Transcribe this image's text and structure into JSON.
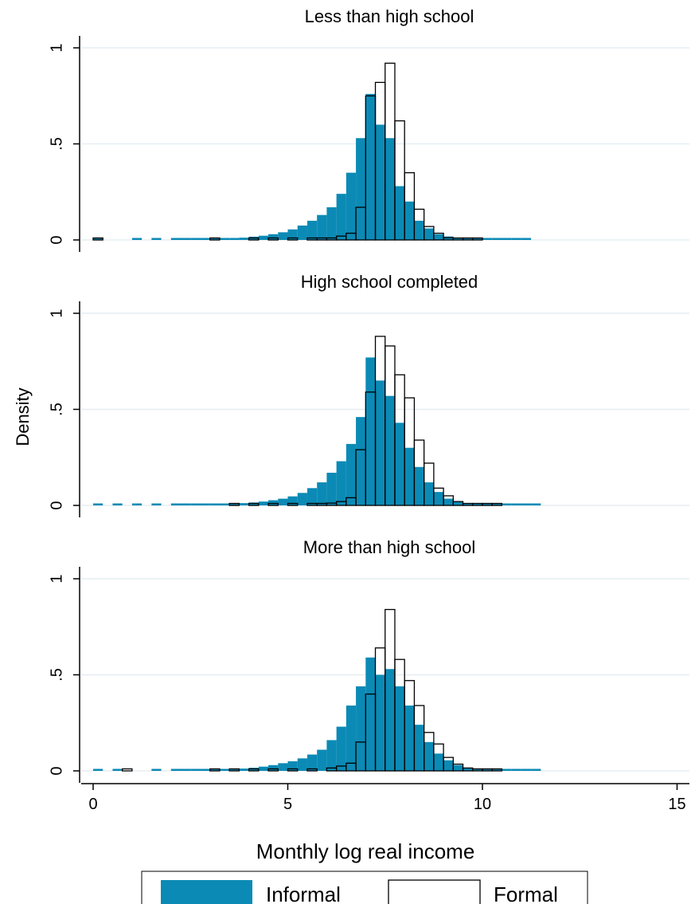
{
  "colors": {
    "informal": "#0b8ab5",
    "formal": "#ffffff",
    "grid": "#e6eef2",
    "axis": "#000000"
  },
  "legend": {
    "informal_label": "Informal",
    "formal_label": "Formal",
    "position": "bottom"
  },
  "chart_data": {
    "type": "bar",
    "subtype": "overlaid-histogram-by-panel",
    "xlabel": "Monthly log real income",
    "ylabel": "Density",
    "xlim": [
      -0.3,
      15.2
    ],
    "ylim": [
      0,
      1.1
    ],
    "xticks": [
      0,
      5,
      10,
      15
    ],
    "yticks": [
      {
        "value": 0,
        "label": "0"
      },
      {
        "value": 0.5,
        "label": ".5"
      },
      {
        "value": 1,
        "label": "1"
      }
    ],
    "grid": true,
    "bin_width": 0.25,
    "panels": [
      {
        "title": "Less than high school",
        "series": [
          {
            "name": "Informal",
            "color": "#0b8ab5",
            "filled": true,
            "x": [
              0.0,
              1.0,
              1.5,
              2.0,
              2.25,
              2.5,
              2.75,
              3.0,
              3.25,
              3.5,
              3.75,
              4.0,
              4.25,
              4.5,
              4.75,
              5.0,
              5.25,
              5.5,
              5.75,
              6.0,
              6.25,
              6.5,
              6.75,
              7.0,
              7.25,
              7.5,
              7.75,
              8.0,
              8.25,
              8.5,
              8.75,
              9.0,
              9.25,
              9.5,
              9.75,
              10.0,
              10.25,
              10.5,
              10.75,
              11.0
            ],
            "y": [
              0.004,
              0.004,
              0.004,
              0.004,
              0.004,
              0.005,
              0.005,
              0.006,
              0.008,
              0.01,
              0.012,
              0.017,
              0.022,
              0.03,
              0.04,
              0.055,
              0.075,
              0.1,
              0.13,
              0.17,
              0.24,
              0.35,
              0.53,
              0.76,
              0.6,
              0.53,
              0.28,
              0.2,
              0.1,
              0.06,
              0.03,
              0.018,
              0.012,
              0.008,
              0.006,
              0.004,
              0.004,
              0.004,
              0.003,
              0.003
            ]
          },
          {
            "name": "Formal",
            "color": "#ffffff",
            "filled": false,
            "x": [
              0.0,
              3.0,
              4.0,
              4.5,
              5.0,
              5.5,
              5.75,
              6.0,
              6.25,
              6.5,
              6.75,
              7.0,
              7.25,
              7.5,
              7.75,
              8.0,
              8.25,
              8.5,
              8.75,
              9.0,
              9.25,
              9.5,
              9.75
            ],
            "y": [
              0.003,
              0.003,
              0.004,
              0.004,
              0.005,
              0.006,
              0.008,
              0.01,
              0.02,
              0.035,
              0.17,
              0.75,
              0.82,
              0.92,
              0.62,
              0.35,
              0.16,
              0.07,
              0.035,
              0.012,
              0.006,
              0.004,
              0.003
            ]
          }
        ]
      },
      {
        "title": "High school completed",
        "series": [
          {
            "name": "Informal",
            "color": "#0b8ab5",
            "filled": true,
            "x": [
              0.0,
              0.5,
              1.0,
              1.5,
              2.0,
              2.25,
              2.5,
              2.75,
              3.0,
              3.25,
              3.5,
              3.75,
              4.0,
              4.25,
              4.5,
              4.75,
              5.0,
              5.25,
              5.5,
              5.75,
              6.0,
              6.25,
              6.5,
              6.75,
              7.0,
              7.25,
              7.5,
              7.75,
              8.0,
              8.25,
              8.5,
              8.75,
              9.0,
              9.25,
              9.5,
              9.75,
              10.0,
              10.25,
              10.5,
              10.75,
              11.0,
              11.25
            ],
            "y": [
              0.004,
              0.004,
              0.004,
              0.004,
              0.004,
              0.004,
              0.005,
              0.005,
              0.006,
              0.007,
              0.009,
              0.012,
              0.015,
              0.02,
              0.027,
              0.035,
              0.047,
              0.065,
              0.09,
              0.12,
              0.17,
              0.23,
              0.32,
              0.46,
              0.77,
              0.65,
              0.57,
              0.43,
              0.3,
              0.2,
              0.12,
              0.07,
              0.035,
              0.02,
              0.012,
              0.008,
              0.006,
              0.005,
              0.004,
              0.004,
              0.004,
              0.004
            ]
          },
          {
            "name": "Formal",
            "color": "#ffffff",
            "filled": false,
            "x": [
              3.5,
              4.0,
              4.5,
              5.0,
              5.5,
              5.75,
              6.0,
              6.25,
              6.5,
              6.75,
              7.0,
              7.25,
              7.5,
              7.75,
              8.0,
              8.25,
              8.5,
              8.75,
              9.0,
              9.25,
              9.5,
              9.75,
              10.0,
              10.25
            ],
            "y": [
              0.004,
              0.004,
              0.005,
              0.006,
              0.008,
              0.01,
              0.012,
              0.02,
              0.04,
              0.29,
              0.59,
              0.88,
              0.83,
              0.68,
              0.56,
              0.34,
              0.22,
              0.09,
              0.05,
              0.02,
              0.01,
              0.006,
              0.005,
              0.004
            ]
          }
        ]
      },
      {
        "title": "More than high school",
        "series": [
          {
            "name": "Informal",
            "color": "#0b8ab5",
            "filled": true,
            "x": [
              0.0,
              0.5,
              1.5,
              2.0,
              2.25,
              2.5,
              2.75,
              3.0,
              3.25,
              3.5,
              3.75,
              4.0,
              4.25,
              4.5,
              4.75,
              5.0,
              5.25,
              5.5,
              5.75,
              6.0,
              6.25,
              6.5,
              6.75,
              7.0,
              7.25,
              7.5,
              7.75,
              8.0,
              8.25,
              8.5,
              8.75,
              9.0,
              9.25,
              9.5,
              9.75,
              10.0,
              10.25,
              10.5,
              10.75,
              11.0,
              11.25
            ],
            "y": [
              0.004,
              0.004,
              0.004,
              0.004,
              0.004,
              0.005,
              0.005,
              0.006,
              0.007,
              0.009,
              0.012,
              0.016,
              0.022,
              0.03,
              0.04,
              0.05,
              0.065,
              0.085,
              0.11,
              0.16,
              0.23,
              0.34,
              0.44,
              0.59,
              0.5,
              0.53,
              0.44,
              0.34,
              0.24,
              0.15,
              0.09,
              0.055,
              0.03,
              0.015,
              0.01,
              0.007,
              0.005,
              0.004,
              0.004,
              0.004,
              0.004
            ]
          },
          {
            "name": "Formal",
            "color": "#ffffff",
            "filled": false,
            "x": [
              0.75,
              3.0,
              3.5,
              4.0,
              4.5,
              5.0,
              5.5,
              6.0,
              6.25,
              6.5,
              6.75,
              7.0,
              7.25,
              7.5,
              7.75,
              8.0,
              8.25,
              8.5,
              8.75,
              9.0,
              9.25,
              9.5,
              9.75,
              10.0,
              10.25
            ],
            "y": [
              0.003,
              0.003,
              0.004,
              0.005,
              0.006,
              0.008,
              0.01,
              0.015,
              0.025,
              0.04,
              0.15,
              0.4,
              0.64,
              0.84,
              0.58,
              0.47,
              0.34,
              0.2,
              0.14,
              0.07,
              0.035,
              0.015,
              0.008,
              0.005,
              0.004
            ]
          }
        ]
      }
    ]
  }
}
